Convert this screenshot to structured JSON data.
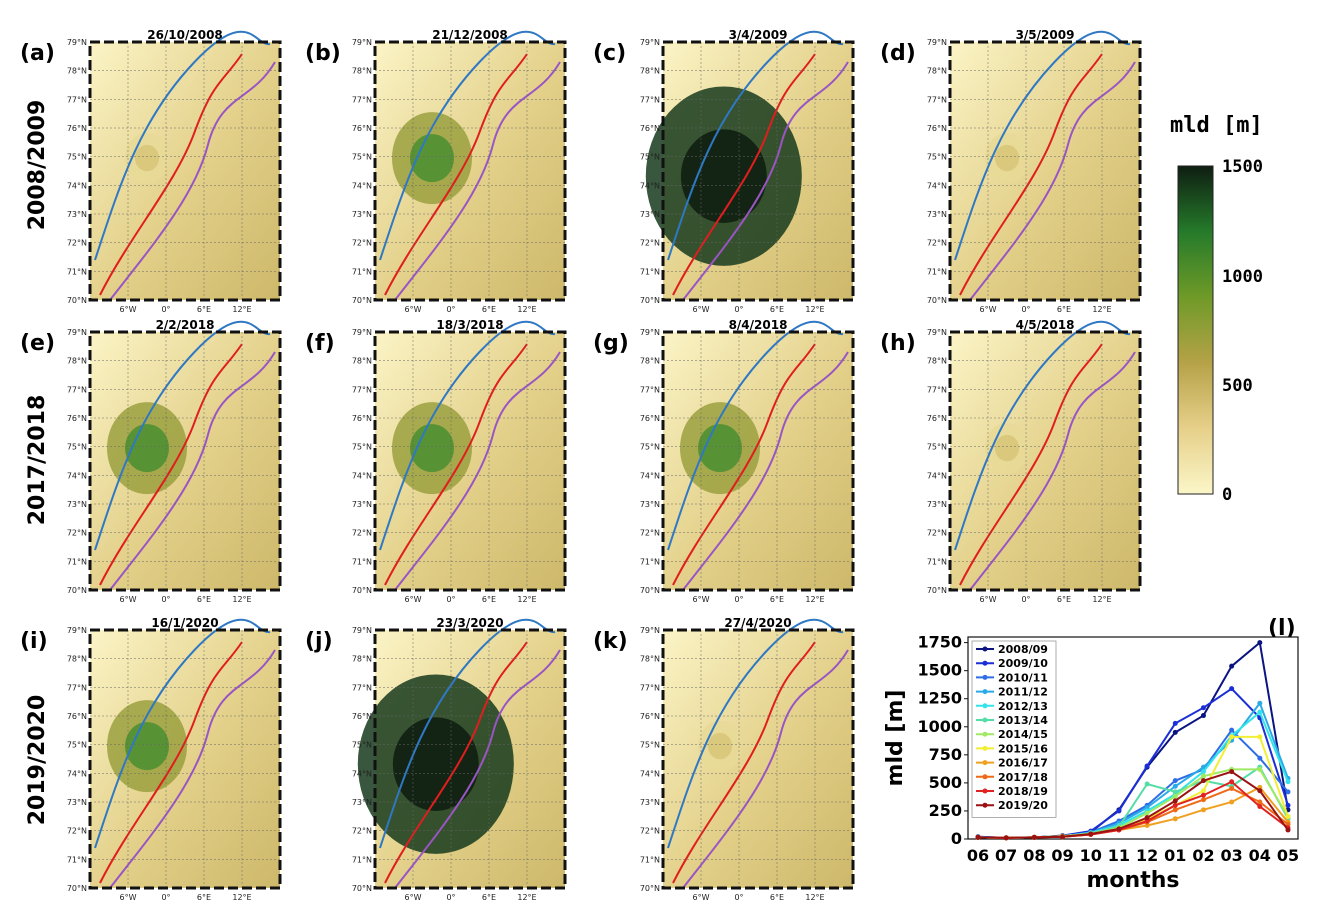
{
  "row_labels": [
    "2008/2009",
    "2017/2018",
    "2019/2020"
  ],
  "panels": [
    {
      "letter": "(a)",
      "title": "26/10/2008",
      "fill_hint": "low"
    },
    {
      "letter": "(b)",
      "title": "21/12/2008",
      "fill_hint": "mid"
    },
    {
      "letter": "(c)",
      "title": "3/4/2009",
      "fill_hint": "high"
    },
    {
      "letter": "(d)",
      "title": "3/5/2009",
      "fill_hint": "low"
    },
    {
      "letter": "(e)",
      "title": "2/2/2018",
      "fill_hint": "mid"
    },
    {
      "letter": "(f)",
      "title": "18/3/2018",
      "fill_hint": "mid"
    },
    {
      "letter": "(g)",
      "title": "8/4/2018",
      "fill_hint": "mid"
    },
    {
      "letter": "(h)",
      "title": "4/5/2018",
      "fill_hint": "low"
    },
    {
      "letter": "(i)",
      "title": "16/1/2020",
      "fill_hint": "mid"
    },
    {
      "letter": "(j)",
      "title": "23/3/2020",
      "fill_hint": "high"
    },
    {
      "letter": "(k)",
      "title": "27/4/2020",
      "fill_hint": "low"
    }
  ],
  "map_axes": {
    "lat_ticks": [
      "79°N",
      "78°N",
      "77°N",
      "76°N",
      "75°N",
      "74°N",
      "73°N",
      "72°N",
      "71°N",
      "70°N"
    ],
    "lon_ticks": [
      "6°W",
      "0°",
      "6°E",
      "12°E"
    ]
  },
  "colorbar": {
    "title": "mld [m]",
    "ticks": [
      "1500",
      "1000",
      "500",
      "0"
    ],
    "colors": [
      "#fbf6c8",
      "#c9a95a",
      "#8c9a2c",
      "#2f8a2c",
      "#0f1e12"
    ]
  },
  "chart_data": {
    "type": "line",
    "panel_letter": "(l)",
    "xlabel": "months",
    "ylabel": "mld [m]",
    "ylim": [
      0,
      1800
    ],
    "yticks": [
      "0",
      "250",
      "500",
      "750",
      "1000",
      "1250",
      "1500",
      "1750"
    ],
    "categories": [
      "06",
      "07",
      "08",
      "09",
      "10",
      "11",
      "12",
      "01",
      "02",
      "03",
      "04",
      "05"
    ],
    "series": [
      {
        "name": "2008/09",
        "color": "#0b1480",
        "values": [
          20,
          10,
          15,
          30,
          60,
          260,
          640,
          950,
          1100,
          1540,
          1750,
          260
        ]
      },
      {
        "name": "2009/10",
        "color": "#1a2fd6",
        "values": [
          15,
          10,
          15,
          30,
          70,
          250,
          650,
          1030,
          1170,
          1340,
          1080,
          300
        ]
      },
      {
        "name": "2010/11",
        "color": "#2e6de6",
        "values": [
          20,
          10,
          15,
          25,
          60,
          160,
          300,
          520,
          620,
          970,
          720,
          420
        ]
      },
      {
        "name": "2011/12",
        "color": "#2aa9e8",
        "values": [
          15,
          10,
          15,
          25,
          55,
          140,
          280,
          470,
          640,
          880,
          1210,
          540
        ]
      },
      {
        "name": "2012/13",
        "color": "#34e3ea",
        "values": [
          15,
          10,
          15,
          25,
          55,
          120,
          250,
          400,
          600,
          920,
          1130,
          510
        ]
      },
      {
        "name": "2013/14",
        "color": "#55dda8",
        "values": [
          15,
          10,
          15,
          25,
          50,
          110,
          490,
          420,
          520,
          470,
          640,
          180
        ]
      },
      {
        "name": "2014/15",
        "color": "#9fea62",
        "values": [
          15,
          10,
          15,
          25,
          45,
          100,
          230,
          380,
          560,
          620,
          620,
          200
        ]
      },
      {
        "name": "2015/16",
        "color": "#f2ee34",
        "values": [
          15,
          10,
          15,
          25,
          45,
          90,
          180,
          300,
          430,
          910,
          910,
          200
        ]
      },
      {
        "name": "2016/17",
        "color": "#f0a020",
        "values": [
          15,
          10,
          15,
          20,
          40,
          80,
          120,
          180,
          260,
          330,
          460,
          150
        ]
      },
      {
        "name": "2017/18",
        "color": "#ee6a18",
        "values": [
          15,
          10,
          15,
          20,
          40,
          80,
          150,
          260,
          350,
          450,
          330,
          130
        ]
      },
      {
        "name": "2018/19",
        "color": "#e02222",
        "values": [
          15,
          10,
          15,
          20,
          40,
          80,
          160,
          300,
          390,
          510,
          290,
          100
        ]
      },
      {
        "name": "2019/20",
        "color": "#9a1212",
        "values": [
          15,
          10,
          15,
          20,
          45,
          90,
          190,
          340,
          520,
          600,
          430,
          80
        ]
      }
    ]
  }
}
